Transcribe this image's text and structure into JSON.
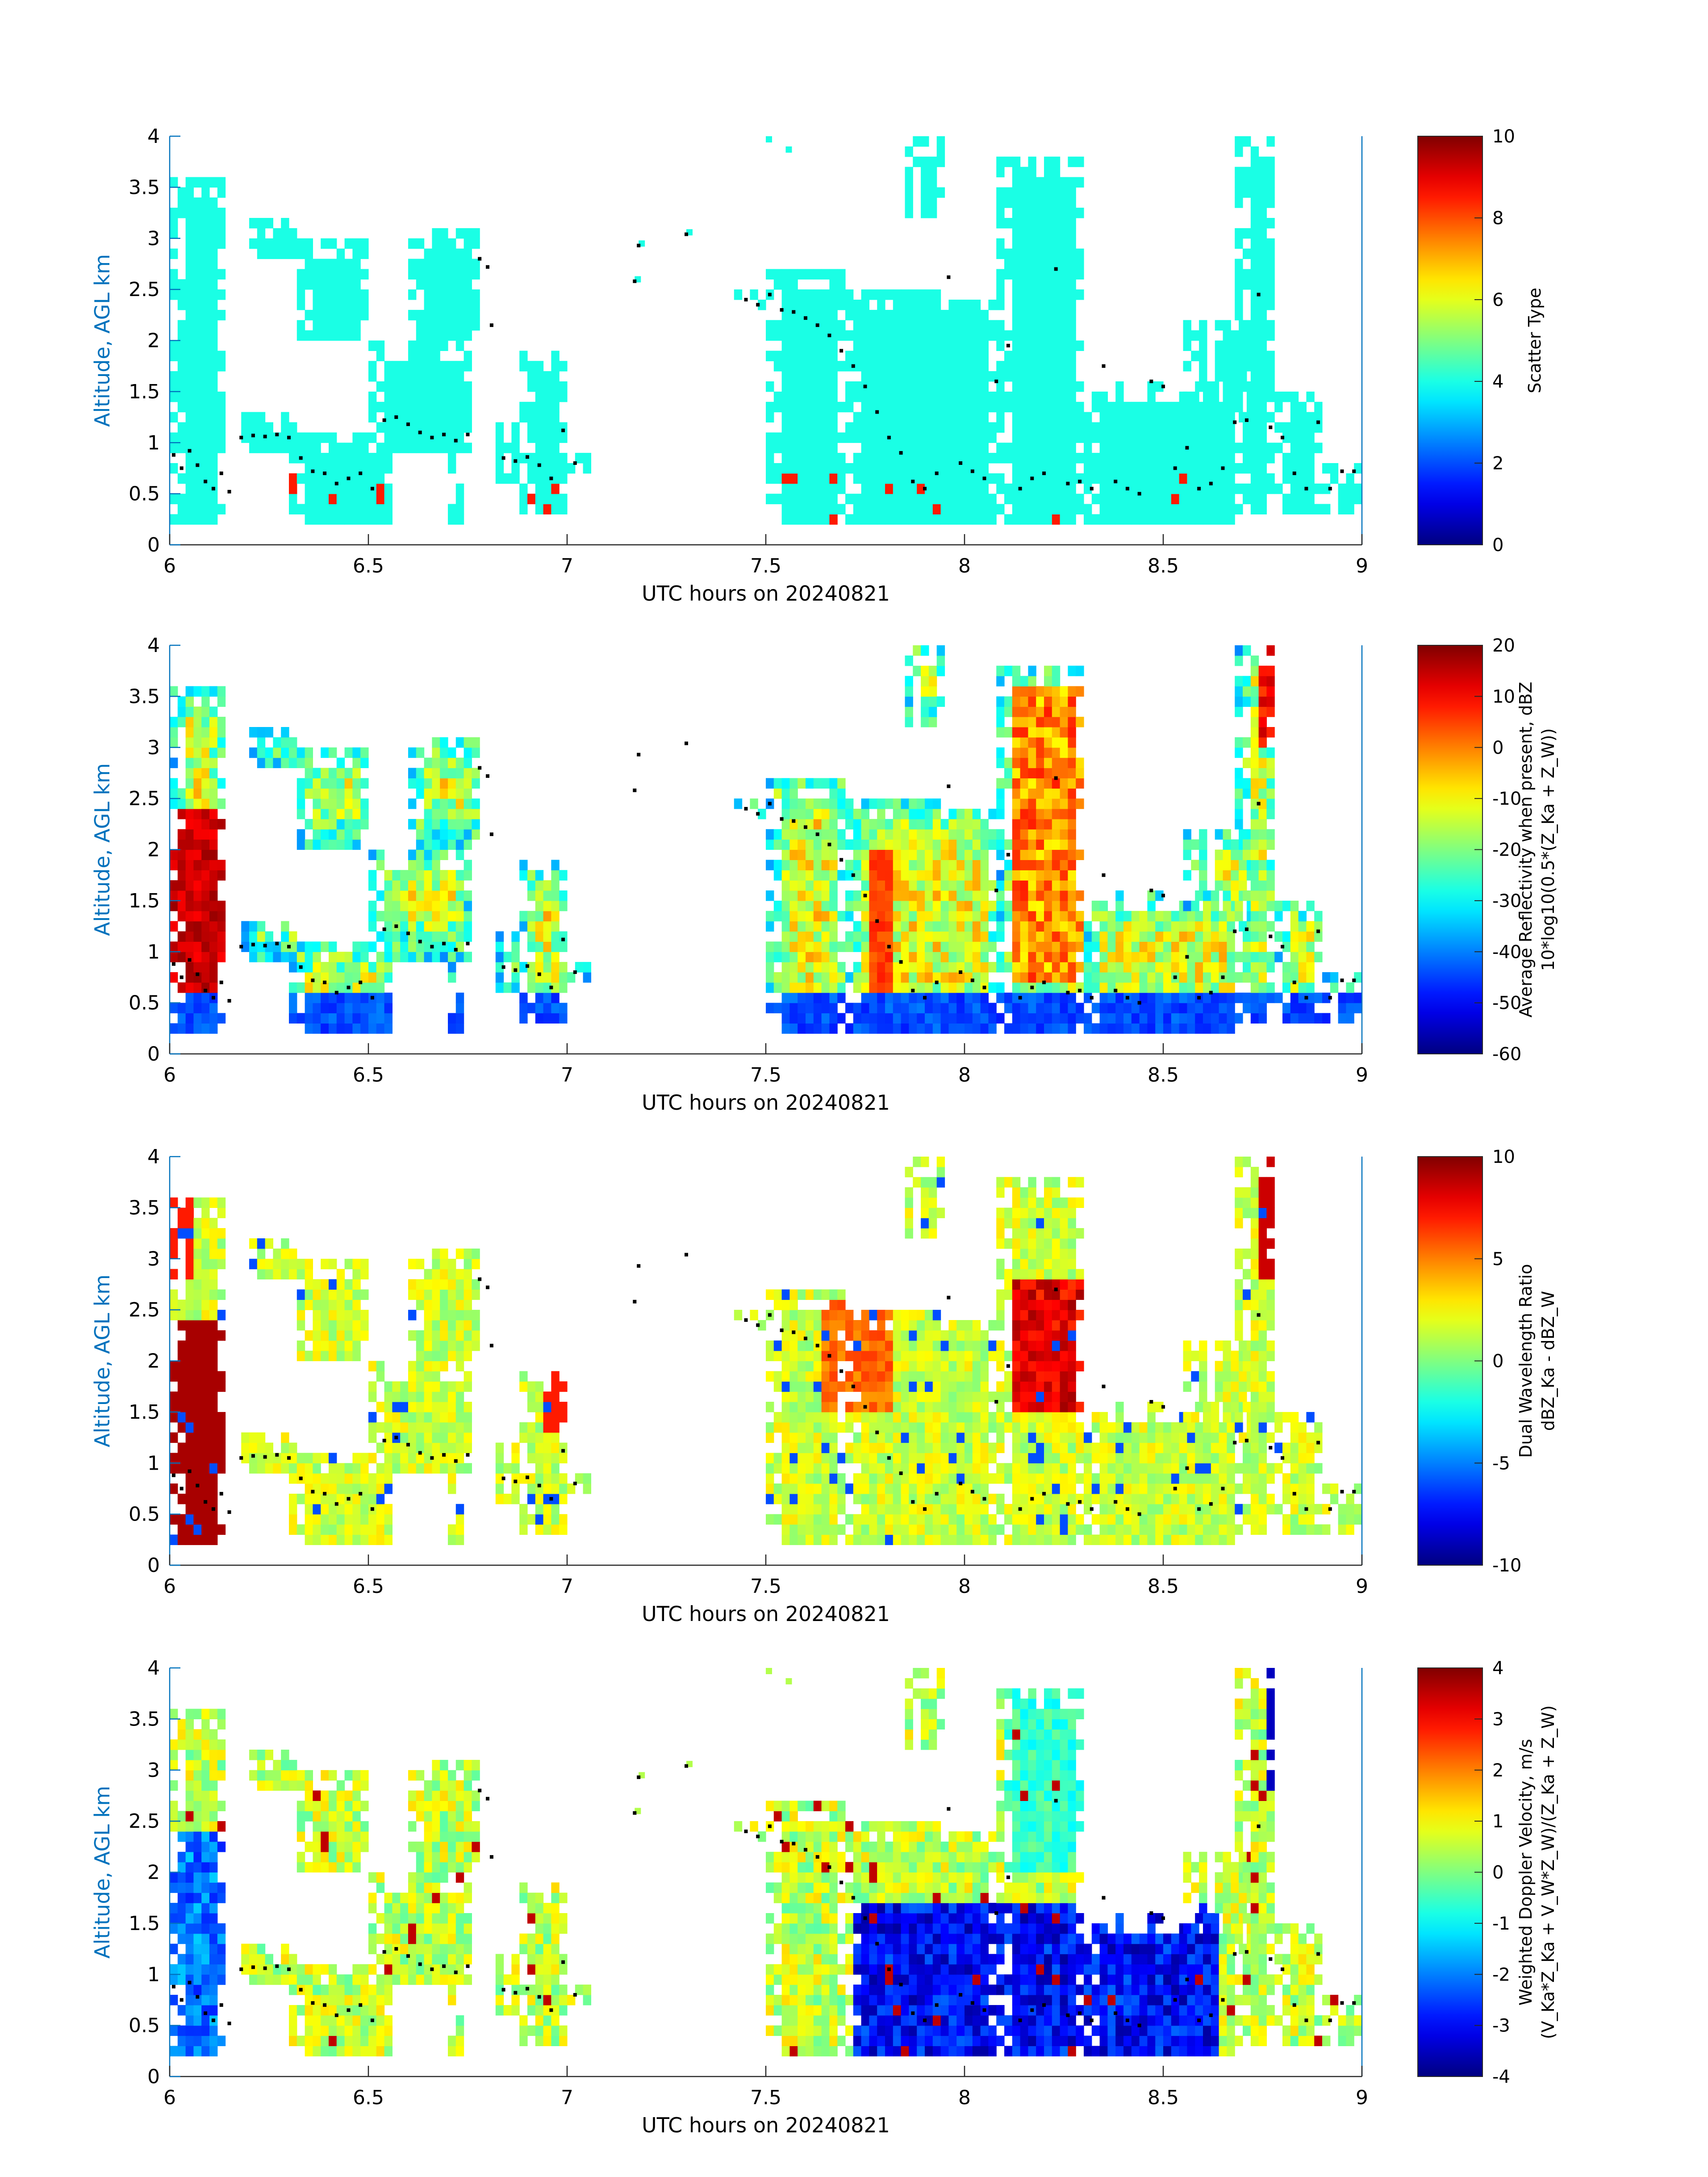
{
  "chart_data": [
    {
      "type": "heatmap",
      "variable": "scatter_type",
      "xlabel": "UTC hours on 20240821",
      "ylabel": "Altitude, AGL km",
      "xlim": [
        6,
        9
      ],
      "ylim": [
        0,
        4
      ],
      "xticks": [
        "6",
        "6.5",
        "7",
        "7.5",
        "8",
        "8.5",
        "9"
      ],
      "yticks": [
        "0",
        "0.5",
        "1",
        "1.5",
        "2",
        "2.5",
        "3",
        "3.5",
        "4"
      ],
      "colorbar": {
        "label_lines": [
          "Scatter Type"
        ],
        "range": [
          0,
          10
        ],
        "ticks": [
          "0",
          "2",
          "4",
          "6",
          "8",
          "10"
        ]
      },
      "colormap": "jet",
      "dominant_value": 4,
      "secondary_value": 8.5
    },
    {
      "type": "heatmap",
      "variable": "average_reflectivity",
      "xlabel": "UTC hours on 20240821",
      "ylabel": "Altitude, AGL km",
      "xlim": [
        6,
        9
      ],
      "ylim": [
        0,
        4
      ],
      "xticks": [
        "6",
        "6.5",
        "7",
        "7.5",
        "8",
        "8.5",
        "9"
      ],
      "yticks": [
        "0",
        "0.5",
        "1",
        "1.5",
        "2",
        "2.5",
        "3",
        "3.5",
        "4"
      ],
      "colorbar": {
        "label_lines": [
          "Average Reflectivity when present, dBZ",
          "10*log10(0.5*(Z_Ka + Z_W))"
        ],
        "range": [
          -60,
          20
        ],
        "ticks": [
          "-60",
          "-50",
          "-40",
          "-30",
          "-20",
          "-10",
          "0",
          "10",
          "20"
        ]
      },
      "colormap": "jet"
    },
    {
      "type": "heatmap",
      "variable": "dual_wavelength_ratio",
      "xlabel": "UTC hours on 20240821",
      "ylabel": "Altitude, AGL km",
      "xlim": [
        6,
        9
      ],
      "ylim": [
        0,
        4
      ],
      "xticks": [
        "6",
        "6.5",
        "7",
        "7.5",
        "8",
        "8.5",
        "9"
      ],
      "yticks": [
        "0",
        "0.5",
        "1",
        "1.5",
        "2",
        "2.5",
        "3",
        "3.5",
        "4"
      ],
      "colorbar": {
        "label_lines": [
          "Dual Wavelength Ratio",
          "dBZ_Ka - dBZ_W"
        ],
        "range": [
          -10,
          10
        ],
        "ticks": [
          "-10",
          "-5",
          "0",
          "5",
          "10"
        ]
      },
      "colormap": "jet"
    },
    {
      "type": "heatmap",
      "variable": "weighted_doppler_velocity",
      "xlabel": "UTC hours on 20240821",
      "ylabel": "Altitude, AGL km",
      "xlim": [
        6,
        9
      ],
      "ylim": [
        0,
        4
      ],
      "xticks": [
        "6",
        "6.5",
        "7",
        "7.5",
        "8",
        "8.5",
        "9"
      ],
      "yticks": [
        "0",
        "0.5",
        "1",
        "1.5",
        "2",
        "2.5",
        "3",
        "3.5",
        "4"
      ],
      "colorbar": {
        "label_lines": [
          "Weighted Doppler Velocity, m/s",
          "(V_Ka*Z_Ka + V_W*Z_W)/(Z_Ka + Z_W)"
        ],
        "range": [
          -4,
          4
        ],
        "ticks": [
          "-4",
          "-3",
          "-2",
          "-1",
          "0",
          "1",
          "2",
          "3",
          "4"
        ]
      },
      "colormap": "jet"
    }
  ],
  "echo_regions": [
    {
      "t0": 6.0,
      "t1": 6.13,
      "zb": 0.2,
      "zt": 3.6
    },
    {
      "t0": 6.18,
      "t1": 6.32,
      "zb": 0.9,
      "zt": 1.3
    },
    {
      "t0": 6.3,
      "t1": 6.55,
      "zb": 0.2,
      "zt": 1.1
    },
    {
      "t0": 6.2,
      "t1": 6.32,
      "zb": 2.8,
      "zt": 3.2
    },
    {
      "t0": 6.32,
      "t1": 6.5,
      "zb": 2.0,
      "zt": 3.0
    },
    {
      "t0": 6.5,
      "t1": 6.75,
      "zb": 0.9,
      "zt": 2.0
    },
    {
      "t0": 6.6,
      "t1": 6.78,
      "zb": 2.0,
      "zt": 3.1
    },
    {
      "t0": 6.7,
      "t1": 6.73,
      "zb": 0.2,
      "zt": 0.9
    },
    {
      "t0": 6.82,
      "t1": 6.9,
      "zb": 0.6,
      "zt": 1.2
    },
    {
      "t0": 6.88,
      "t1": 7.0,
      "zb": 0.3,
      "zt": 1.9
    },
    {
      "t0": 7.0,
      "t1": 7.06,
      "zb": 0.7,
      "zt": 0.9
    },
    {
      "t0": 7.42,
      "t1": 7.5,
      "zb": 2.3,
      "zt": 2.5
    },
    {
      "t0": 7.5,
      "t1": 7.7,
      "zb": 0.2,
      "zt": 2.7
    },
    {
      "t0": 7.7,
      "t1": 8.08,
      "zb": 0.2,
      "zt": 2.5
    },
    {
      "t0": 7.85,
      "t1": 7.95,
      "zb": 3.2,
      "zt": 4.0
    },
    {
      "t0": 8.08,
      "t1": 8.3,
      "zb": 0.2,
      "zt": 3.8
    },
    {
      "t0": 8.3,
      "t1": 8.7,
      "zb": 0.2,
      "zt": 1.6
    },
    {
      "t0": 8.55,
      "t1": 8.72,
      "zb": 1.2,
      "zt": 2.2
    },
    {
      "t0": 8.68,
      "t1": 8.78,
      "zb": 0.3,
      "zt": 4.0
    },
    {
      "t0": 8.78,
      "t1": 8.9,
      "zb": 0.3,
      "zt": 1.5
    },
    {
      "t0": 8.9,
      "t1": 9.0,
      "zb": 0.3,
      "zt": 0.8
    }
  ],
  "sparse_points": [
    {
      "t": 7.18,
      "z": 2.93
    },
    {
      "t": 7.17,
      "z": 2.58
    },
    {
      "t": 7.3,
      "z": 3.04
    },
    {
      "t": 7.5,
      "z": 3.95
    },
    {
      "t": 7.55,
      "z": 3.85
    }
  ],
  "cloud_base_markers": [
    {
      "t": 6.01,
      "z": 0.88
    },
    {
      "t": 6.03,
      "z": 0.75
    },
    {
      "t": 6.05,
      "z": 0.92
    },
    {
      "t": 6.07,
      "z": 0.78
    },
    {
      "t": 6.09,
      "z": 0.62
    },
    {
      "t": 6.11,
      "z": 0.55
    },
    {
      "t": 6.13,
      "z": 0.7
    },
    {
      "t": 6.15,
      "z": 0.52
    },
    {
      "t": 6.18,
      "z": 1.05
    },
    {
      "t": 6.21,
      "z": 1.07
    },
    {
      "t": 6.24,
      "z": 1.06
    },
    {
      "t": 6.27,
      "z": 1.08
    },
    {
      "t": 6.3,
      "z": 1.05
    },
    {
      "t": 6.33,
      "z": 0.85
    },
    {
      "t": 6.36,
      "z": 0.72
    },
    {
      "t": 6.39,
      "z": 0.7
    },
    {
      "t": 6.42,
      "z": 0.6
    },
    {
      "t": 6.45,
      "z": 0.65
    },
    {
      "t": 6.48,
      "z": 0.7
    },
    {
      "t": 6.51,
      "z": 0.55
    },
    {
      "t": 6.54,
      "z": 1.22
    },
    {
      "t": 6.57,
      "z": 1.25
    },
    {
      "t": 6.6,
      "z": 1.18
    },
    {
      "t": 6.63,
      "z": 1.1
    },
    {
      "t": 6.66,
      "z": 1.05
    },
    {
      "t": 6.69,
      "z": 1.08
    },
    {
      "t": 6.72,
      "z": 1.02
    },
    {
      "t": 6.75,
      "z": 1.08
    },
    {
      "t": 6.78,
      "z": 2.8
    },
    {
      "t": 6.8,
      "z": 2.72
    },
    {
      "t": 6.81,
      "z": 2.15
    },
    {
      "t": 6.84,
      "z": 0.85
    },
    {
      "t": 6.87,
      "z": 0.82
    },
    {
      "t": 6.9,
      "z": 0.86
    },
    {
      "t": 6.93,
      "z": 0.78
    },
    {
      "t": 6.96,
      "z": 0.65
    },
    {
      "t": 6.99,
      "z": 1.12
    },
    {
      "t": 7.02,
      "z": 0.8
    },
    {
      "t": 7.45,
      "z": 2.4
    },
    {
      "t": 7.48,
      "z": 2.35
    },
    {
      "t": 7.51,
      "z": 2.45
    },
    {
      "t": 7.54,
      "z": 2.3
    },
    {
      "t": 7.57,
      "z": 2.28
    },
    {
      "t": 7.6,
      "z": 2.22
    },
    {
      "t": 7.63,
      "z": 2.15
    },
    {
      "t": 7.66,
      "z": 2.05
    },
    {
      "t": 7.69,
      "z": 1.9
    },
    {
      "t": 7.72,
      "z": 1.75
    },
    {
      "t": 7.75,
      "z": 1.55
    },
    {
      "t": 7.78,
      "z": 1.3
    },
    {
      "t": 7.81,
      "z": 1.05
    },
    {
      "t": 7.84,
      "z": 0.9
    },
    {
      "t": 7.87,
      "z": 0.62
    },
    {
      "t": 7.9,
      "z": 0.55
    },
    {
      "t": 7.93,
      "z": 0.7
    },
    {
      "t": 7.96,
      "z": 2.62
    },
    {
      "t": 7.99,
      "z": 0.8
    },
    {
      "t": 8.02,
      "z": 0.72
    },
    {
      "t": 8.05,
      "z": 0.65
    },
    {
      "t": 8.08,
      "z": 1.6
    },
    {
      "t": 8.11,
      "z": 1.95
    },
    {
      "t": 8.14,
      "z": 0.55
    },
    {
      "t": 8.17,
      "z": 0.65
    },
    {
      "t": 8.2,
      "z": 0.7
    },
    {
      "t": 8.23,
      "z": 2.7
    },
    {
      "t": 8.26,
      "z": 0.6
    },
    {
      "t": 8.29,
      "z": 0.62
    },
    {
      "t": 8.32,
      "z": 0.55
    },
    {
      "t": 8.35,
      "z": 1.75
    },
    {
      "t": 8.38,
      "z": 0.62
    },
    {
      "t": 8.41,
      "z": 0.55
    },
    {
      "t": 8.44,
      "z": 0.5
    },
    {
      "t": 8.47,
      "z": 1.6
    },
    {
      "t": 8.5,
      "z": 1.55
    },
    {
      "t": 8.53,
      "z": 0.75
    },
    {
      "t": 8.56,
      "z": 0.95
    },
    {
      "t": 8.59,
      "z": 0.55
    },
    {
      "t": 8.62,
      "z": 0.6
    },
    {
      "t": 8.65,
      "z": 0.75
    },
    {
      "t": 8.68,
      "z": 1.2
    },
    {
      "t": 8.71,
      "z": 1.22
    },
    {
      "t": 8.74,
      "z": 2.45
    },
    {
      "t": 8.77,
      "z": 1.15
    },
    {
      "t": 8.8,
      "z": 1.05
    },
    {
      "t": 8.83,
      "z": 0.7
    },
    {
      "t": 8.86,
      "z": 0.55
    },
    {
      "t": 8.89,
      "z": 1.2
    },
    {
      "t": 8.92,
      "z": 0.55
    },
    {
      "t": 8.95,
      "z": 0.72
    },
    {
      "t": 8.98,
      "z": 0.72
    }
  ]
}
